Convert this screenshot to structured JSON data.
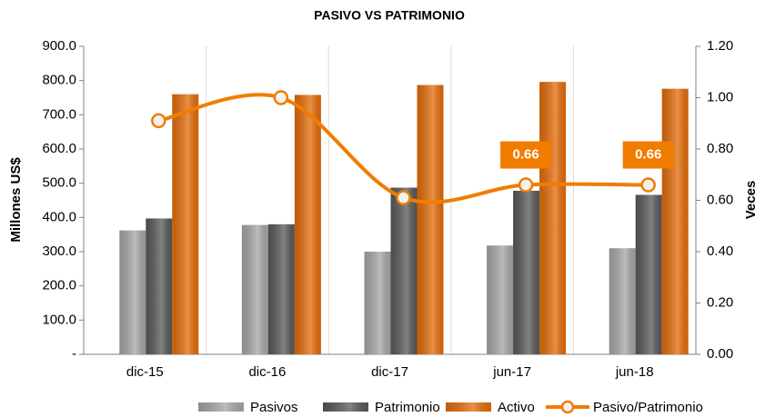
{
  "chart_data": {
    "type": "bar",
    "title": "PASIVO VS PATRIMONIO",
    "y_label": "Millones US$",
    "y2_label": "Veces",
    "categories": [
      "dic-15",
      "dic-16",
      "dic-17",
      "jun-17",
      "jun-18"
    ],
    "series": [
      {
        "name": "Pasivos",
        "color": "#a6a6a6",
        "values": [
          362,
          378,
          300,
          318,
          310
        ]
      },
      {
        "name": "Patrimonio",
        "color": "#595959",
        "values": [
          397,
          380,
          487,
          478,
          466
        ]
      },
      {
        "name": "Activo",
        "color": "#e36c09",
        "values": [
          760,
          758,
          787,
          796,
          776
        ]
      },
      {
        "name": "Pasivo/Patrimonio",
        "type": "line",
        "axis": "y2",
        "color": "#f07d00",
        "values": [
          0.91,
          1.0,
          0.61,
          0.66,
          0.66
        ],
        "value_labels": [
          null,
          null,
          null,
          "0.66",
          "0.66"
        ]
      }
    ],
    "ylim": [
      0,
      900
    ],
    "yticks": [
      {
        "value": 0,
        "label": "-"
      },
      {
        "value": 100,
        "label": "100.0"
      },
      {
        "value": 200,
        "label": "200.0"
      },
      {
        "value": 300,
        "label": "300.0"
      },
      {
        "value": 400,
        "label": "400.0"
      },
      {
        "value": 500,
        "label": "500.0"
      },
      {
        "value": 600,
        "label": "600.0"
      },
      {
        "value": 700,
        "label": "700.0"
      },
      {
        "value": 800,
        "label": "800.0"
      },
      {
        "value": 900,
        "label": "900.0"
      }
    ],
    "y2lim": [
      0,
      1.2
    ],
    "y2ticks": [
      {
        "value": 0,
        "label": "0.00"
      },
      {
        "value": 0.2,
        "label": "0.20"
      },
      {
        "value": 0.4,
        "label": "0.40"
      },
      {
        "value": 0.6,
        "label": "0.60"
      },
      {
        "value": 0.8,
        "label": "0.80"
      },
      {
        "value": 1.0,
        "label": "1.00"
      },
      {
        "value": 1.2,
        "label": "1.20"
      }
    ],
    "xgrid": true,
    "legend": "bottom"
  }
}
